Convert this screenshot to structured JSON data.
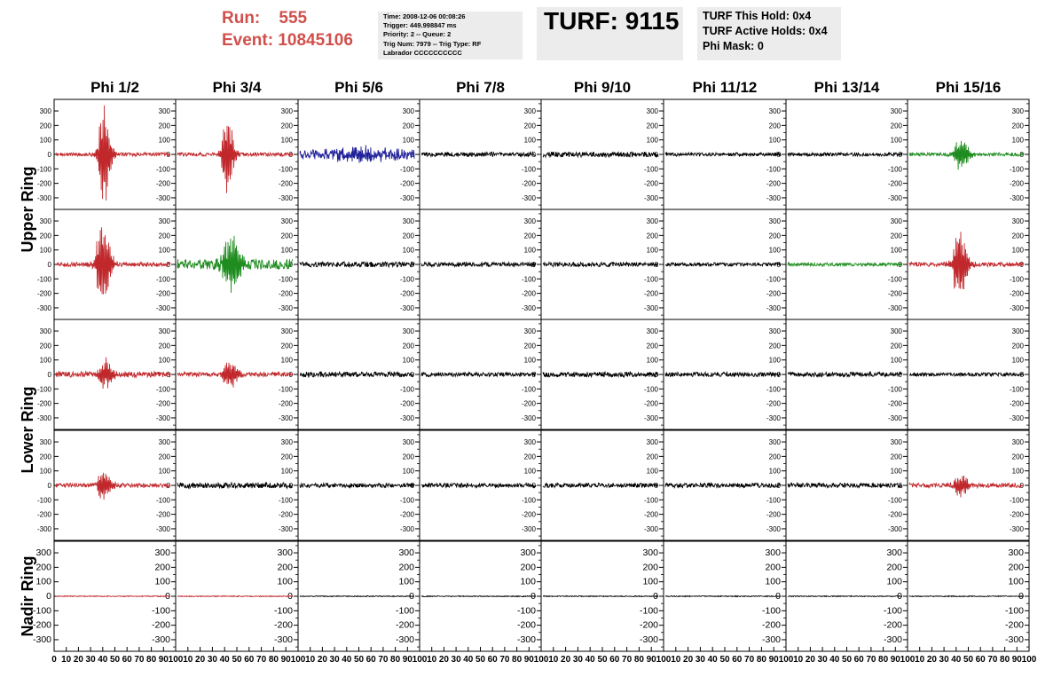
{
  "header": {
    "run_label": "Run:",
    "run_value": "555",
    "event_label": "Event:",
    "event_value": "10845106",
    "header_color": "#d0504c",
    "info_lines": [
      "Time: 2008-12-06 00:08:26",
      "Trigger: 449.998847 ms",
      "Priority: 2 -- Queue: 2",
      "Trig Num: 7979 -- Trig Type: RF",
      "Labrador CCCCCCCCCC"
    ],
    "turf_label": "TURF: 9115",
    "hold_lines": [
      "TURF This Hold: 0x4",
      "TURF Active Holds: 0x4",
      "Phi Mask: 0"
    ]
  },
  "chart_data": {
    "type": "line",
    "columns": [
      "Phi 1/2",
      "Phi 3/4",
      "Phi 5/6",
      "Phi 7/8",
      "Phi 9/10",
      "Phi 11/12",
      "Phi 13/14",
      "Phi 15/16"
    ],
    "rows": [
      {
        "label": "Upper Ring",
        "panels": 2
      },
      {
        "label": "Lower Ring",
        "panels": 2
      },
      {
        "label": "Nadir Ring",
        "panels": 1
      }
    ],
    "ylim": [
      -380,
      380
    ],
    "yticks": [
      -300,
      -200,
      -100,
      0,
      100,
      200,
      300
    ],
    "xlim": [
      0,
      100
    ],
    "xtick_labels": [
      "0",
      "10",
      "20",
      "30",
      "40",
      "50",
      "60",
      "70",
      "80",
      "90",
      "100"
    ],
    "colors": {
      "red": "#c0282c",
      "green": "#1e8c1e",
      "blue": "#20209a",
      "black": "#000000"
    },
    "panels": [
      {
        "row": 0,
        "sub": 0,
        "col": 0,
        "color": "red",
        "noise": 12,
        "peak": 360,
        "center": 42,
        "width": 6
      },
      {
        "row": 0,
        "sub": 0,
        "col": 1,
        "color": "red",
        "noise": 12,
        "peak": 300,
        "center": 43,
        "width": 6
      },
      {
        "row": 0,
        "sub": 0,
        "col": 2,
        "color": "blue",
        "noise": 35,
        "peak": 40,
        "center": 50,
        "width": 30
      },
      {
        "row": 0,
        "sub": 0,
        "col": 3,
        "color": "black",
        "noise": 15,
        "peak": 0,
        "center": 50,
        "width": 10
      },
      {
        "row": 0,
        "sub": 0,
        "col": 4,
        "color": "black",
        "noise": 18,
        "peak": 0,
        "center": 50,
        "width": 10
      },
      {
        "row": 0,
        "sub": 0,
        "col": 5,
        "color": "black",
        "noise": 12,
        "peak": 0,
        "center": 50,
        "width": 10
      },
      {
        "row": 0,
        "sub": 0,
        "col": 6,
        "color": "black",
        "noise": 12,
        "peak": 0,
        "center": 50,
        "width": 10
      },
      {
        "row": 0,
        "sub": 0,
        "col": 7,
        "color": "green",
        "noise": 12,
        "peak": 120,
        "center": 45,
        "width": 7
      },
      {
        "row": 0,
        "sub": 1,
        "col": 0,
        "color": "red",
        "noise": 15,
        "peak": 330,
        "center": 41,
        "width": 7
      },
      {
        "row": 0,
        "sub": 1,
        "col": 1,
        "color": "green",
        "noise": 35,
        "peak": 240,
        "center": 46,
        "width": 9
      },
      {
        "row": 0,
        "sub": 1,
        "col": 2,
        "color": "black",
        "noise": 18,
        "peak": 0,
        "center": 50,
        "width": 10
      },
      {
        "row": 0,
        "sub": 1,
        "col": 3,
        "color": "black",
        "noise": 15,
        "peak": 0,
        "center": 50,
        "width": 10
      },
      {
        "row": 0,
        "sub": 1,
        "col": 4,
        "color": "black",
        "noise": 15,
        "peak": 0,
        "center": 50,
        "width": 10
      },
      {
        "row": 0,
        "sub": 1,
        "col": 5,
        "color": "black",
        "noise": 12,
        "peak": 0,
        "center": 50,
        "width": 10
      },
      {
        "row": 0,
        "sub": 1,
        "col": 6,
        "color": "green",
        "noise": 12,
        "peak": 0,
        "center": 50,
        "width": 10
      },
      {
        "row": 0,
        "sub": 1,
        "col": 7,
        "color": "red",
        "noise": 15,
        "peak": 260,
        "center": 44,
        "width": 7
      },
      {
        "row": 1,
        "sub": 0,
        "col": 0,
        "color": "red",
        "noise": 20,
        "peak": 110,
        "center": 43,
        "width": 7
      },
      {
        "row": 1,
        "sub": 0,
        "col": 1,
        "color": "red",
        "noise": 15,
        "peak": 110,
        "center": 45,
        "width": 7
      },
      {
        "row": 1,
        "sub": 0,
        "col": 2,
        "color": "black",
        "noise": 18,
        "peak": 0,
        "center": 50,
        "width": 10
      },
      {
        "row": 1,
        "sub": 0,
        "col": 3,
        "color": "black",
        "noise": 15,
        "peak": 0,
        "center": 50,
        "width": 10
      },
      {
        "row": 1,
        "sub": 0,
        "col": 4,
        "color": "black",
        "noise": 18,
        "peak": 0,
        "center": 50,
        "width": 10
      },
      {
        "row": 1,
        "sub": 0,
        "col": 5,
        "color": "black",
        "noise": 15,
        "peak": 0,
        "center": 50,
        "width": 10
      },
      {
        "row": 1,
        "sub": 0,
        "col": 6,
        "color": "black",
        "noise": 15,
        "peak": 0,
        "center": 50,
        "width": 10
      },
      {
        "row": 1,
        "sub": 0,
        "col": 7,
        "color": "black",
        "noise": 12,
        "peak": 0,
        "center": 50,
        "width": 10
      },
      {
        "row": 1,
        "sub": 1,
        "col": 0,
        "color": "red",
        "noise": 15,
        "peak": 110,
        "center": 42,
        "width": 7
      },
      {
        "row": 1,
        "sub": 1,
        "col": 1,
        "color": "black",
        "noise": 20,
        "peak": 0,
        "center": 50,
        "width": 10
      },
      {
        "row": 1,
        "sub": 1,
        "col": 2,
        "color": "black",
        "noise": 15,
        "peak": 0,
        "center": 50,
        "width": 10
      },
      {
        "row": 1,
        "sub": 1,
        "col": 3,
        "color": "black",
        "noise": 15,
        "peak": 0,
        "center": 50,
        "width": 10
      },
      {
        "row": 1,
        "sub": 1,
        "col": 4,
        "color": "black",
        "noise": 15,
        "peak": 0,
        "center": 50,
        "width": 10
      },
      {
        "row": 1,
        "sub": 1,
        "col": 5,
        "color": "black",
        "noise": 15,
        "peak": 0,
        "center": 50,
        "width": 10
      },
      {
        "row": 1,
        "sub": 1,
        "col": 6,
        "color": "black",
        "noise": 15,
        "peak": 0,
        "center": 50,
        "width": 10
      },
      {
        "row": 1,
        "sub": 1,
        "col": 7,
        "color": "red",
        "noise": 15,
        "peak": 80,
        "center": 45,
        "width": 8
      },
      {
        "row": 2,
        "sub": 0,
        "col": 0,
        "color": "red",
        "noise": 3,
        "peak": 0,
        "center": 50,
        "width": 10
      },
      {
        "row": 2,
        "sub": 0,
        "col": 1,
        "color": "red",
        "noise": 3,
        "peak": 0,
        "center": 50,
        "width": 10
      },
      {
        "row": 2,
        "sub": 0,
        "col": 2,
        "color": "black",
        "noise": 3,
        "peak": 0,
        "center": 50,
        "width": 10
      },
      {
        "row": 2,
        "sub": 0,
        "col": 3,
        "color": "black",
        "noise": 3,
        "peak": 0,
        "center": 50,
        "width": 10
      },
      {
        "row": 2,
        "sub": 0,
        "col": 4,
        "color": "black",
        "noise": 3,
        "peak": 0,
        "center": 50,
        "width": 10
      },
      {
        "row": 2,
        "sub": 0,
        "col": 5,
        "color": "black",
        "noise": 3,
        "peak": 0,
        "center": 50,
        "width": 10
      },
      {
        "row": 2,
        "sub": 0,
        "col": 6,
        "color": "black",
        "noise": 3,
        "peak": 0,
        "center": 50,
        "width": 10
      },
      {
        "row": 2,
        "sub": 0,
        "col": 7,
        "color": "black",
        "noise": 3,
        "peak": 0,
        "center": 50,
        "width": 10
      }
    ]
  }
}
